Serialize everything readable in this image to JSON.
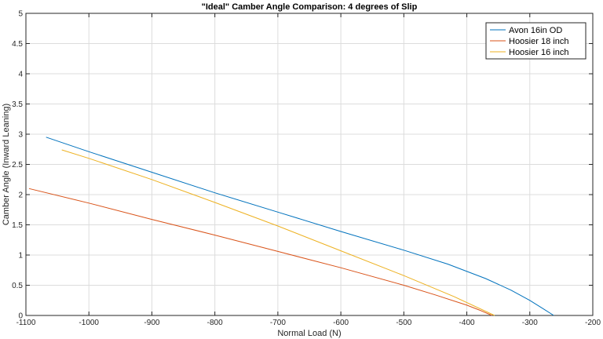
{
  "chart_data": {
    "type": "line",
    "title": "\"Ideal\" Camber Angle Comparison: 4 degrees of Slip",
    "xlabel": "Normal Load (N)",
    "ylabel": "Camber Angle (Inward Leaning)",
    "xlim": [
      -1100,
      -200
    ],
    "ylim": [
      0,
      5
    ],
    "xticks": [
      -1100,
      -1000,
      -900,
      -800,
      -700,
      -600,
      -500,
      -400,
      -300,
      -200
    ],
    "yticks": [
      0,
      0.5,
      1,
      1.5,
      2,
      2.5,
      3,
      3.5,
      4,
      4.5,
      5
    ],
    "xtick_labels": [
      "-1100",
      "-1000",
      "-900",
      "-800",
      "-700",
      "-600",
      "-500",
      "-400",
      "-300",
      "-200"
    ],
    "ytick_labels": [
      "0",
      "0.5",
      "1",
      "1.5",
      "2",
      "2.5",
      "3",
      "3.5",
      "4",
      "4.5",
      "5"
    ],
    "grid": true,
    "legend_position": "top-right",
    "series": [
      {
        "name": "Avon 16in OD",
        "color": "#0072BD",
        "x": [
          -1068,
          -1000,
          -900,
          -800,
          -700,
          -600,
          -500,
          -430,
          -370,
          -330,
          -300,
          -280,
          -262
        ],
        "y": [
          2.95,
          2.71,
          2.37,
          2.03,
          1.71,
          1.39,
          1.08,
          0.85,
          0.61,
          0.42,
          0.25,
          0.12,
          0.0
        ]
      },
      {
        "name": "Hoosier 18 inch",
        "color": "#D95319",
        "x": [
          -1095,
          -1000,
          -900,
          -800,
          -700,
          -600,
          -500,
          -450,
          -400,
          -380,
          -360
        ],
        "y": [
          2.1,
          1.86,
          1.59,
          1.33,
          1.06,
          0.79,
          0.5,
          0.34,
          0.17,
          0.09,
          0.0
        ]
      },
      {
        "name": "Hoosier 16 inch",
        "color": "#EDB120",
        "x": [
          -1043,
          -1000,
          -900,
          -800,
          -700,
          -600,
          -500,
          -420,
          -356
        ],
        "y": [
          2.74,
          2.6,
          2.25,
          1.87,
          1.48,
          1.07,
          0.66,
          0.31,
          0.0
        ]
      }
    ]
  }
}
